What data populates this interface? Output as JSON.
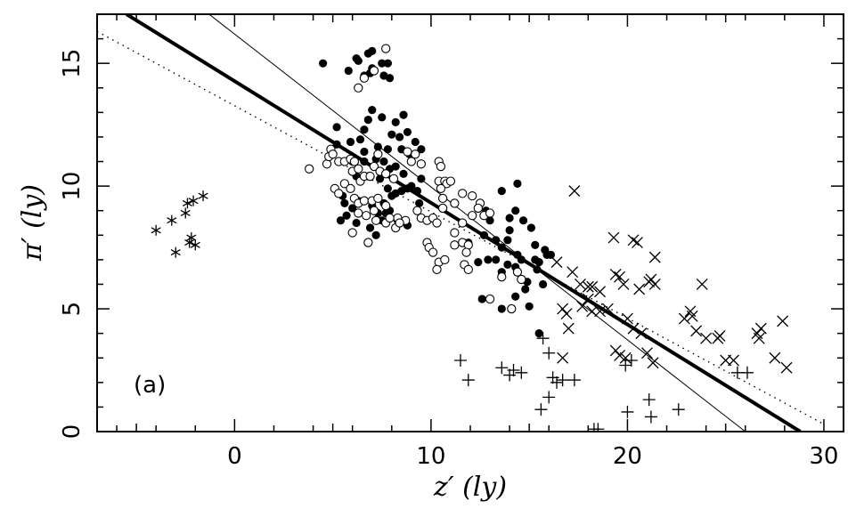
{
  "chart_data": {
    "type": "scatter",
    "xlabel": "z′ (ly)",
    "ylabel": "π′ (ly)",
    "annotation": "(a)",
    "xlim": [
      -7,
      31
    ],
    "ylim": [
      0,
      17
    ],
    "xticks": [
      0,
      10,
      20,
      30
    ],
    "yticks": [
      0,
      5,
      10,
      15
    ],
    "grid": false,
    "colors": {
      "axes": "#000000",
      "marker": "#000000"
    },
    "series": [
      {
        "marker": "filled-circle",
        "points": [
          [
            4.5,
            15
          ],
          [
            5.8,
            14.7
          ],
          [
            6.2,
            15.2
          ],
          [
            6.3,
            15.1
          ],
          [
            6.8,
            15.4
          ],
          [
            7.0,
            15.5
          ],
          [
            7.0,
            14.8
          ],
          [
            7.5,
            15.0
          ],
          [
            7.8,
            15.0
          ],
          [
            7.6,
            14.5
          ],
          [
            7.9,
            14.4
          ],
          [
            6.9,
            14.6
          ],
          [
            6.6,
            14.5
          ],
          [
            7.0,
            13.1
          ],
          [
            7.5,
            12.8
          ],
          [
            8.2,
            12.6
          ],
          [
            8.6,
            12.9
          ],
          [
            8.8,
            12.2
          ],
          [
            9.2,
            11.8
          ],
          [
            8.4,
            12.0
          ],
          [
            6.8,
            12.7
          ],
          [
            6.6,
            12.3
          ],
          [
            5.2,
            12.4
          ],
          [
            5.2,
            11.7
          ],
          [
            5.9,
            11.8
          ],
          [
            6.4,
            11.9
          ],
          [
            6.6,
            11.4
          ],
          [
            7.3,
            11.6
          ],
          [
            7.8,
            11.5
          ],
          [
            8.0,
            12.1
          ],
          [
            8.5,
            11.5
          ],
          [
            8.9,
            11.3
          ],
          [
            9.5,
            11.5
          ],
          [
            6.0,
            11.0
          ],
          [
            6.6,
            11.0
          ],
          [
            7.2,
            11.1
          ],
          [
            7.6,
            11.0
          ],
          [
            7.9,
            10.7
          ],
          [
            8.2,
            10.8
          ],
          [
            8.6,
            10.5
          ],
          [
            9.0,
            10.0
          ],
          [
            9.5,
            10.3
          ],
          [
            6.2,
            10.4
          ],
          [
            6.8,
            10.4
          ],
          [
            7.4,
            10.3
          ],
          [
            7.8,
            9.9
          ],
          [
            8.2,
            9.7
          ],
          [
            8.8,
            9.9
          ],
          [
            9.3,
            9.8
          ],
          [
            5.5,
            9.6
          ],
          [
            6.3,
            9.4
          ],
          [
            7.0,
            9.2
          ],
          [
            7.6,
            9.3
          ],
          [
            8.0,
            9.6
          ],
          [
            8.5,
            9.8
          ],
          [
            5.6,
            9.3
          ],
          [
            6.0,
            9.1
          ],
          [
            7.3,
            8.9
          ],
          [
            7.9,
            9.0
          ],
          [
            8.3,
            8.6
          ],
          [
            8.8,
            8.4
          ],
          [
            5.7,
            8.8
          ],
          [
            5.4,
            8.6
          ],
          [
            6.2,
            8.5
          ],
          [
            7.7,
            8.9
          ],
          [
            6.9,
            8.3
          ],
          [
            7.5,
            8.6
          ],
          [
            7.2,
            8.0
          ],
          [
            9.4,
            9.3
          ],
          [
            12.8,
            9.0
          ],
          [
            13.0,
            8.6
          ],
          [
            12.7,
            8.0
          ],
          [
            13.3,
            7.8
          ],
          [
            13.6,
            7.5
          ],
          [
            14.0,
            8.7
          ],
          [
            14.3,
            9.0
          ],
          [
            14.7,
            8.6
          ],
          [
            14.0,
            8.2
          ],
          [
            13.9,
            7.8
          ],
          [
            14.4,
            7.2
          ],
          [
            13.6,
            9.8
          ],
          [
            14.4,
            10.1
          ],
          [
            15.1,
            8.3
          ],
          [
            15.3,
            7.6
          ],
          [
            11.9,
            7.7
          ],
          [
            12.4,
            6.9
          ],
          [
            12.9,
            7.0
          ],
          [
            13.3,
            7.0
          ],
          [
            13.6,
            6.5
          ],
          [
            13.9,
            6.8
          ],
          [
            14.3,
            6.7
          ],
          [
            14.6,
            7.0
          ],
          [
            15.3,
            7.0
          ],
          [
            15.5,
            6.9
          ],
          [
            15.8,
            7.4
          ],
          [
            15.9,
            7.2
          ],
          [
            16.1,
            7.2
          ],
          [
            15.4,
            6.6
          ],
          [
            14.9,
            6.1
          ],
          [
            14.8,
            5.8
          ],
          [
            14.3,
            5.5
          ],
          [
            15.0,
            5.1
          ],
          [
            12.6,
            5.4
          ],
          [
            13.6,
            5.0
          ],
          [
            15.7,
            6.0
          ],
          [
            15.5,
            4.0
          ]
        ]
      },
      {
        "marker": "open-circle",
        "points": [
          [
            6.3,
            14.0
          ],
          [
            6.6,
            14.4
          ],
          [
            7.1,
            14.7
          ],
          [
            7.7,
            15.6
          ],
          [
            3.8,
            10.7
          ],
          [
            4.7,
            10.9
          ],
          [
            4.8,
            11.2
          ],
          [
            4.9,
            11.5
          ],
          [
            5.0,
            11.3
          ],
          [
            5.3,
            11.0
          ],
          [
            5.6,
            11.0
          ],
          [
            5.9,
            11.1
          ],
          [
            6.1,
            11.0
          ],
          [
            6.0,
            10.6
          ],
          [
            6.3,
            10.7
          ],
          [
            6.4,
            10.2
          ],
          [
            6.6,
            10.4
          ],
          [
            6.9,
            10.4
          ],
          [
            7.1,
            10.8
          ],
          [
            7.4,
            10.6
          ],
          [
            7.7,
            10.5
          ],
          [
            8.1,
            10.3
          ],
          [
            7.3,
            11.3
          ],
          [
            5.1,
            9.9
          ],
          [
            5.3,
            9.7
          ],
          [
            5.6,
            10.1
          ],
          [
            5.9,
            9.9
          ],
          [
            6.1,
            9.5
          ],
          [
            6.3,
            9.3
          ],
          [
            6.6,
            9.4
          ],
          [
            7.0,
            9.4
          ],
          [
            7.3,
            9.5
          ],
          [
            7.7,
            9.2
          ],
          [
            7.1,
            9.0
          ],
          [
            6.3,
            8.9
          ],
          [
            6.7,
            8.8
          ],
          [
            7.2,
            8.6
          ],
          [
            7.7,
            8.5
          ],
          [
            8.3,
            8.7
          ],
          [
            8.7,
            8.6
          ],
          [
            8.2,
            8.3
          ],
          [
            8.4,
            8.5
          ],
          [
            7.9,
            8.7
          ],
          [
            9.3,
            9.0
          ],
          [
            9.5,
            8.7
          ],
          [
            9.8,
            8.6
          ],
          [
            10.1,
            8.7
          ],
          [
            10.3,
            8.5
          ],
          [
            10.6,
            9.1
          ],
          [
            10.4,
            10.2
          ],
          [
            10.7,
            10.2
          ],
          [
            10.8,
            10.1
          ],
          [
            11.0,
            10.2
          ],
          [
            10.5,
            9.9
          ],
          [
            10.6,
            9.5
          ],
          [
            11.2,
            9.3
          ],
          [
            11.6,
            9.7
          ],
          [
            12.1,
            9.6
          ],
          [
            12.5,
            9.3
          ],
          [
            12.1,
            8.8
          ],
          [
            11.6,
            8.5
          ],
          [
            11.2,
            8.1
          ],
          [
            11.6,
            7.7
          ],
          [
            9.8,
            7.7
          ],
          [
            9.9,
            7.5
          ],
          [
            10.1,
            7.3
          ],
          [
            10.4,
            6.9
          ],
          [
            10.3,
            6.6
          ],
          [
            10.7,
            7.0
          ],
          [
            11.2,
            7.6
          ],
          [
            11.9,
            7.6
          ],
          [
            11.8,
            7.3
          ],
          [
            11.7,
            6.8
          ],
          [
            11.9,
            6.6
          ],
          [
            6.0,
            8.1
          ],
          [
            6.8,
            7.7
          ],
          [
            10.4,
            11.0
          ],
          [
            10.5,
            10.8
          ],
          [
            9.0,
            11.0
          ],
          [
            8.8,
            11.4
          ],
          [
            12.4,
            9.1
          ],
          [
            12.7,
            8.8
          ],
          [
            13.0,
            8.9
          ],
          [
            13.6,
            6.3
          ],
          [
            14.4,
            6.5
          ],
          [
            14.6,
            6.2
          ],
          [
            13.0,
            5.4
          ],
          [
            14.1,
            5.0
          ],
          [
            9.2,
            11.3
          ],
          [
            9.5,
            10.9
          ]
        ]
      },
      {
        "marker": "cross-x",
        "points": [
          [
            17.3,
            9.8
          ],
          [
            19.3,
            7.9
          ],
          [
            20.3,
            7.8
          ],
          [
            20.5,
            7.7
          ],
          [
            16.4,
            6.9
          ],
          [
            17.2,
            6.5
          ],
          [
            17.6,
            6.0
          ],
          [
            18.2,
            5.9
          ],
          [
            18.0,
            5.4
          ],
          [
            18.6,
            5.7
          ],
          [
            19.0,
            5.0
          ],
          [
            19.4,
            6.4
          ],
          [
            19.6,
            6.3
          ],
          [
            19.8,
            6.0
          ],
          [
            20.3,
            4.2
          ],
          [
            20.6,
            5.8
          ],
          [
            21.1,
            6.1
          ],
          [
            21.2,
            6.2
          ],
          [
            21.4,
            6.0
          ],
          [
            21.4,
            7.1
          ],
          [
            20.0,
            4.6
          ],
          [
            20.7,
            4.0
          ],
          [
            22.9,
            4.6
          ],
          [
            23.2,
            4.9
          ],
          [
            23.3,
            4.7
          ],
          [
            23.5,
            4.1
          ],
          [
            23.8,
            6.0
          ],
          [
            24.0,
            3.8
          ],
          [
            24.6,
            3.8
          ],
          [
            24.7,
            3.9
          ],
          [
            25.0,
            2.9
          ],
          [
            25.4,
            2.9
          ],
          [
            26.6,
            4.0
          ],
          [
            26.8,
            4.2
          ],
          [
            26.7,
            3.8
          ],
          [
            27.5,
            3.0
          ],
          [
            27.9,
            4.5
          ],
          [
            28.1,
            2.6
          ],
          [
            19.4,
            3.3
          ],
          [
            19.6,
            3.1
          ],
          [
            19.9,
            3.0
          ],
          [
            16.9,
            4.8
          ],
          [
            16.7,
            5.0
          ],
          [
            17.7,
            5.1
          ],
          [
            17.0,
            4.2
          ],
          [
            18.2,
            4.9
          ],
          [
            18.6,
            4.9
          ],
          [
            18.0,
            5.9
          ],
          [
            21.3,
            2.8
          ],
          [
            21.0,
            3.2
          ],
          [
            16.7,
            3.0
          ]
        ]
      },
      {
        "marker": "plus",
        "points": [
          [
            11.5,
            2.9
          ],
          [
            11.9,
            2.1
          ],
          [
            13.6,
            2.6
          ],
          [
            14.0,
            2.3
          ],
          [
            14.2,
            2.5
          ],
          [
            14.6,
            2.4
          ],
          [
            15.7,
            3.8
          ],
          [
            16.0,
            3.2
          ],
          [
            16.2,
            2.2
          ],
          [
            16.4,
            2.0
          ],
          [
            16.7,
            2.1
          ],
          [
            17.3,
            2.1
          ],
          [
            15.6,
            0.9
          ],
          [
            16.0,
            1.4
          ],
          [
            18.3,
            0.1
          ],
          [
            18.5,
            0.1
          ],
          [
            20.0,
            0.8
          ],
          [
            21.1,
            1.3
          ],
          [
            21.2,
            0.6
          ],
          [
            22.6,
            0.9
          ],
          [
            25.6,
            2.4
          ],
          [
            26.1,
            2.4
          ],
          [
            19.9,
            2.7
          ],
          [
            20.2,
            2.9
          ]
        ]
      },
      {
        "marker": "asterisk",
        "points": [
          [
            -4.0,
            8.2
          ],
          [
            -3.2,
            8.6
          ],
          [
            -3.0,
            7.3
          ],
          [
            -2.5,
            8.9
          ],
          [
            -2.4,
            9.3
          ],
          [
            -2.1,
            9.4
          ],
          [
            -1.6,
            9.6
          ],
          [
            -2.3,
            7.7
          ],
          [
            -2.0,
            7.6
          ],
          [
            -2.2,
            7.9
          ]
        ]
      }
    ],
    "fit_lines": [
      {
        "style": "thick-solid",
        "points": [
          [
            -5.5,
            17.0
          ],
          [
            28.8,
            0.0
          ]
        ]
      },
      {
        "style": "thin-solid",
        "points": [
          [
            -1.3,
            17.0
          ],
          [
            26.0,
            0.0
          ]
        ]
      },
      {
        "style": "dotted",
        "points": [
          [
            -7.0,
            16.3
          ],
          [
            30.0,
            0.3
          ]
        ]
      }
    ]
  }
}
